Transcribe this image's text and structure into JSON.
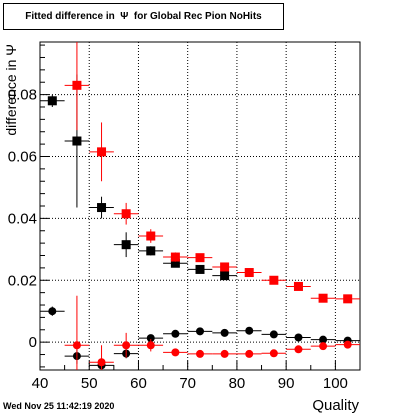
{
  "chart_data": {
    "type": "scatter",
    "title": "Fitted difference in  Ψ  for Global Rec Pion NoHits",
    "xlabel": "Quality",
    "ylabel": "difference in  Ψ",
    "xlim": [
      40,
      105
    ],
    "ylim": [
      -0.009,
      0.097
    ],
    "x_ticks": [
      40,
      50,
      60,
      70,
      80,
      90,
      100
    ],
    "y_ticks": [
      0,
      0.02,
      0.04,
      0.06,
      0.08
    ],
    "x_tick_labels": [
      "40",
      "50",
      "60",
      "70",
      "80",
      "90",
      "100"
    ],
    "y_tick_labels": [
      "0",
      "0.02",
      "0.04",
      "0.06",
      "0.08"
    ],
    "grid": true,
    "series": [
      {
        "color": "#000000",
        "marker": "square",
        "x": [
          42.5,
          47.5,
          52.5,
          57.5,
          62.5,
          67.5,
          72.5,
          77.5
        ],
        "y": [
          0.078,
          0.065,
          0.0435,
          0.0315,
          0.0295,
          0.0255,
          0.0235,
          0.0215
        ],
        "yerr": [
          0.002,
          0.0215,
          0.0035,
          0.004,
          0.0015,
          0.0012,
          0.001,
          0.001
        ]
      },
      {
        "color": "#ff0000",
        "marker": "square",
        "x": [
          47.5,
          52.5,
          57.5,
          62.5,
          67.5,
          72.5,
          77.5,
          82.5,
          87.5,
          92.5,
          97.5,
          102.5
        ],
        "y": [
          0.083,
          0.0615,
          0.0415,
          0.0343,
          0.0275,
          0.0273,
          0.0243,
          0.0225,
          0.02,
          0.018,
          0.0142,
          0.014
        ],
        "yerr": [
          0.0145,
          0.0095,
          0.0035,
          0.0022,
          0.0015,
          0.0012,
          0.001,
          0.001,
          0.001,
          0.001,
          0.001,
          0.0008
        ]
      },
      {
        "color": "#000000",
        "marker": "circle",
        "x": [
          42.5,
          47.5,
          52.5,
          57.5,
          62.5,
          67.5,
          72.5,
          77.5,
          82.5,
          87.5,
          92.5,
          97.5,
          102.5
        ],
        "y": [
          0.01,
          -0.0045,
          -0.0075,
          -0.0037,
          0.0013,
          0.0027,
          0.0035,
          0.003,
          0.0037,
          0.0025,
          0.0015,
          0.0008,
          0.0005
        ],
        "yerr": [
          0.0015,
          0.0025,
          0.0015,
          0.0015,
          0.001,
          0.0008,
          0.0008,
          0.0008,
          0.0008,
          0.0008,
          0.0008,
          0.0008,
          0.0008
        ]
      },
      {
        "color": "#ff0000",
        "marker": "circle",
        "x": [
          47.5,
          52.5,
          57.5,
          62.5,
          67.5,
          72.5,
          77.5,
          82.5,
          87.5,
          92.5,
          97.5,
          102.5
        ],
        "y": [
          -0.001,
          -0.0065,
          -0.001,
          -0.001,
          -0.0033,
          -0.0038,
          -0.0038,
          -0.0038,
          -0.0036,
          -0.0023,
          -0.0013,
          -0.0008
        ],
        "yerr": [
          0.016,
          0.0055,
          0.004,
          0.002,
          0.0008,
          0.0006,
          0.0006,
          0.0006,
          0.0006,
          0.0006,
          0.0006,
          0.0006
        ]
      }
    ]
  },
  "footer": {
    "timestamp": "Wed Nov 25 11:42:19 2020"
  }
}
